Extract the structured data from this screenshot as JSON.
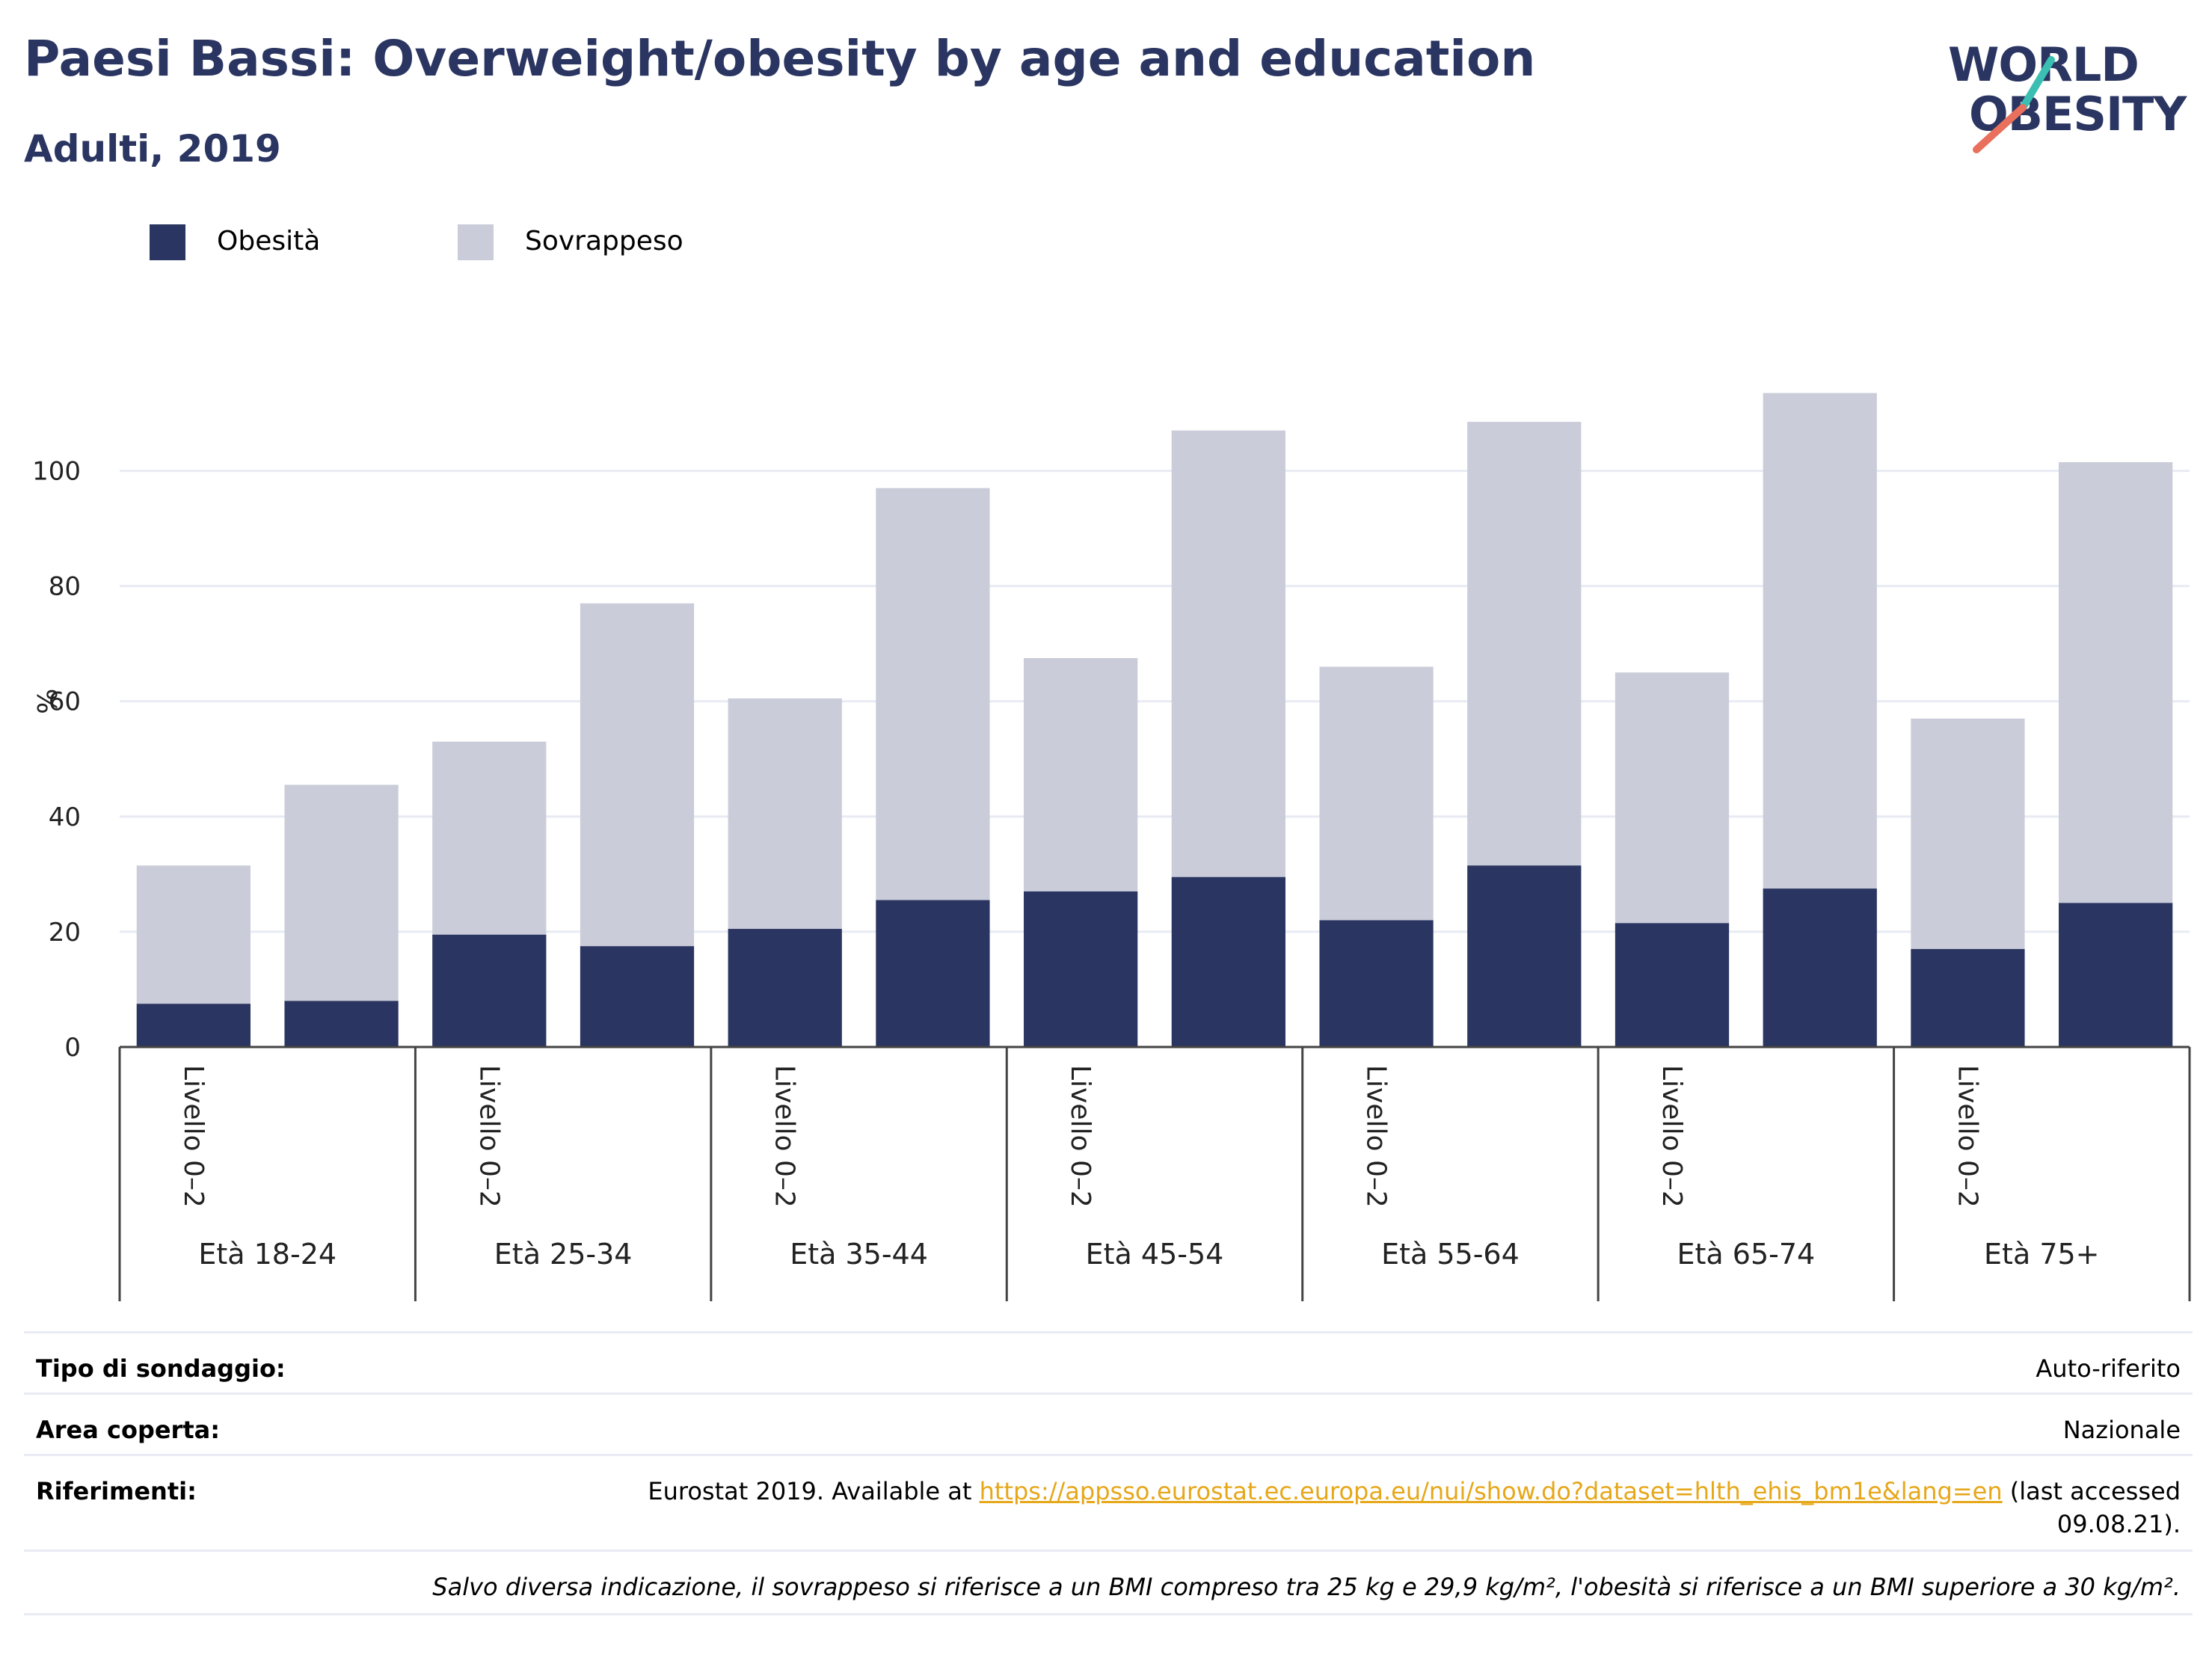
{
  "header": {
    "title": "Paesi Bassi: Overweight/obesity by age and education",
    "subtitle": "Adulti, 2019"
  },
  "logo": {
    "line1": "WORLD",
    "line2": "OBESITY",
    "slash_color_top": "#3bbfb3",
    "slash_color_bottom": "#e8705c"
  },
  "colors": {
    "obesity": "#2a3561",
    "overweight": "#cacdd9",
    "grid": "#e8ebf3",
    "axis": "#444444",
    "link": "#e6a719"
  },
  "chart_data": {
    "type": "bar",
    "stacked": true,
    "ylabel": "%",
    "ylim": [
      0,
      115
    ],
    "yticks": [
      0,
      20,
      40,
      60,
      80,
      100
    ],
    "grid": true,
    "legend_position": "top-left",
    "groups": [
      "Età 18-24",
      "Età 25-34",
      "Età 35-44",
      "Età 45-54",
      "Età 55-64",
      "Età 65-74",
      "Età 75+"
    ],
    "category_label": "Livello 0–2",
    "series": [
      {
        "name": "Obesità",
        "values": [
          7.5,
          8,
          19.5,
          17.5,
          20.5,
          25.5,
          27,
          29.5,
          22,
          31.5,
          21.5,
          27.5,
          17,
          25
        ]
      },
      {
        "name": "Sovrappeso",
        "values": [
          24,
          37.5,
          33.5,
          59.5,
          40,
          71.5,
          40.5,
          77.5,
          44,
          77,
          43.5,
          86,
          40,
          76.5
        ]
      }
    ]
  },
  "info": {
    "survey_key": "Tipo di sondaggio:",
    "survey_val": "Auto-riferito",
    "area_key": "Area coperta:",
    "area_val": "Nazionale",
    "ref_key": "Riferimenti:",
    "ref_prefix": "Eurostat 2019. Available at ",
    "ref_link": "https://appsso.eurostat.ec.europa.eu/nui/show.do?dataset=hlth_ehis_bm1e&lang=en",
    "ref_suffix": " (last accessed",
    "ref_suffix2": "09.08.21).",
    "note": "Salvo diversa indicazione, il sovrappeso si riferisce a un BMI compreso tra 25 kg e 29,9 kg/m², l'obesità si riferisce a un BMI superiore a 30 kg/m²."
  }
}
